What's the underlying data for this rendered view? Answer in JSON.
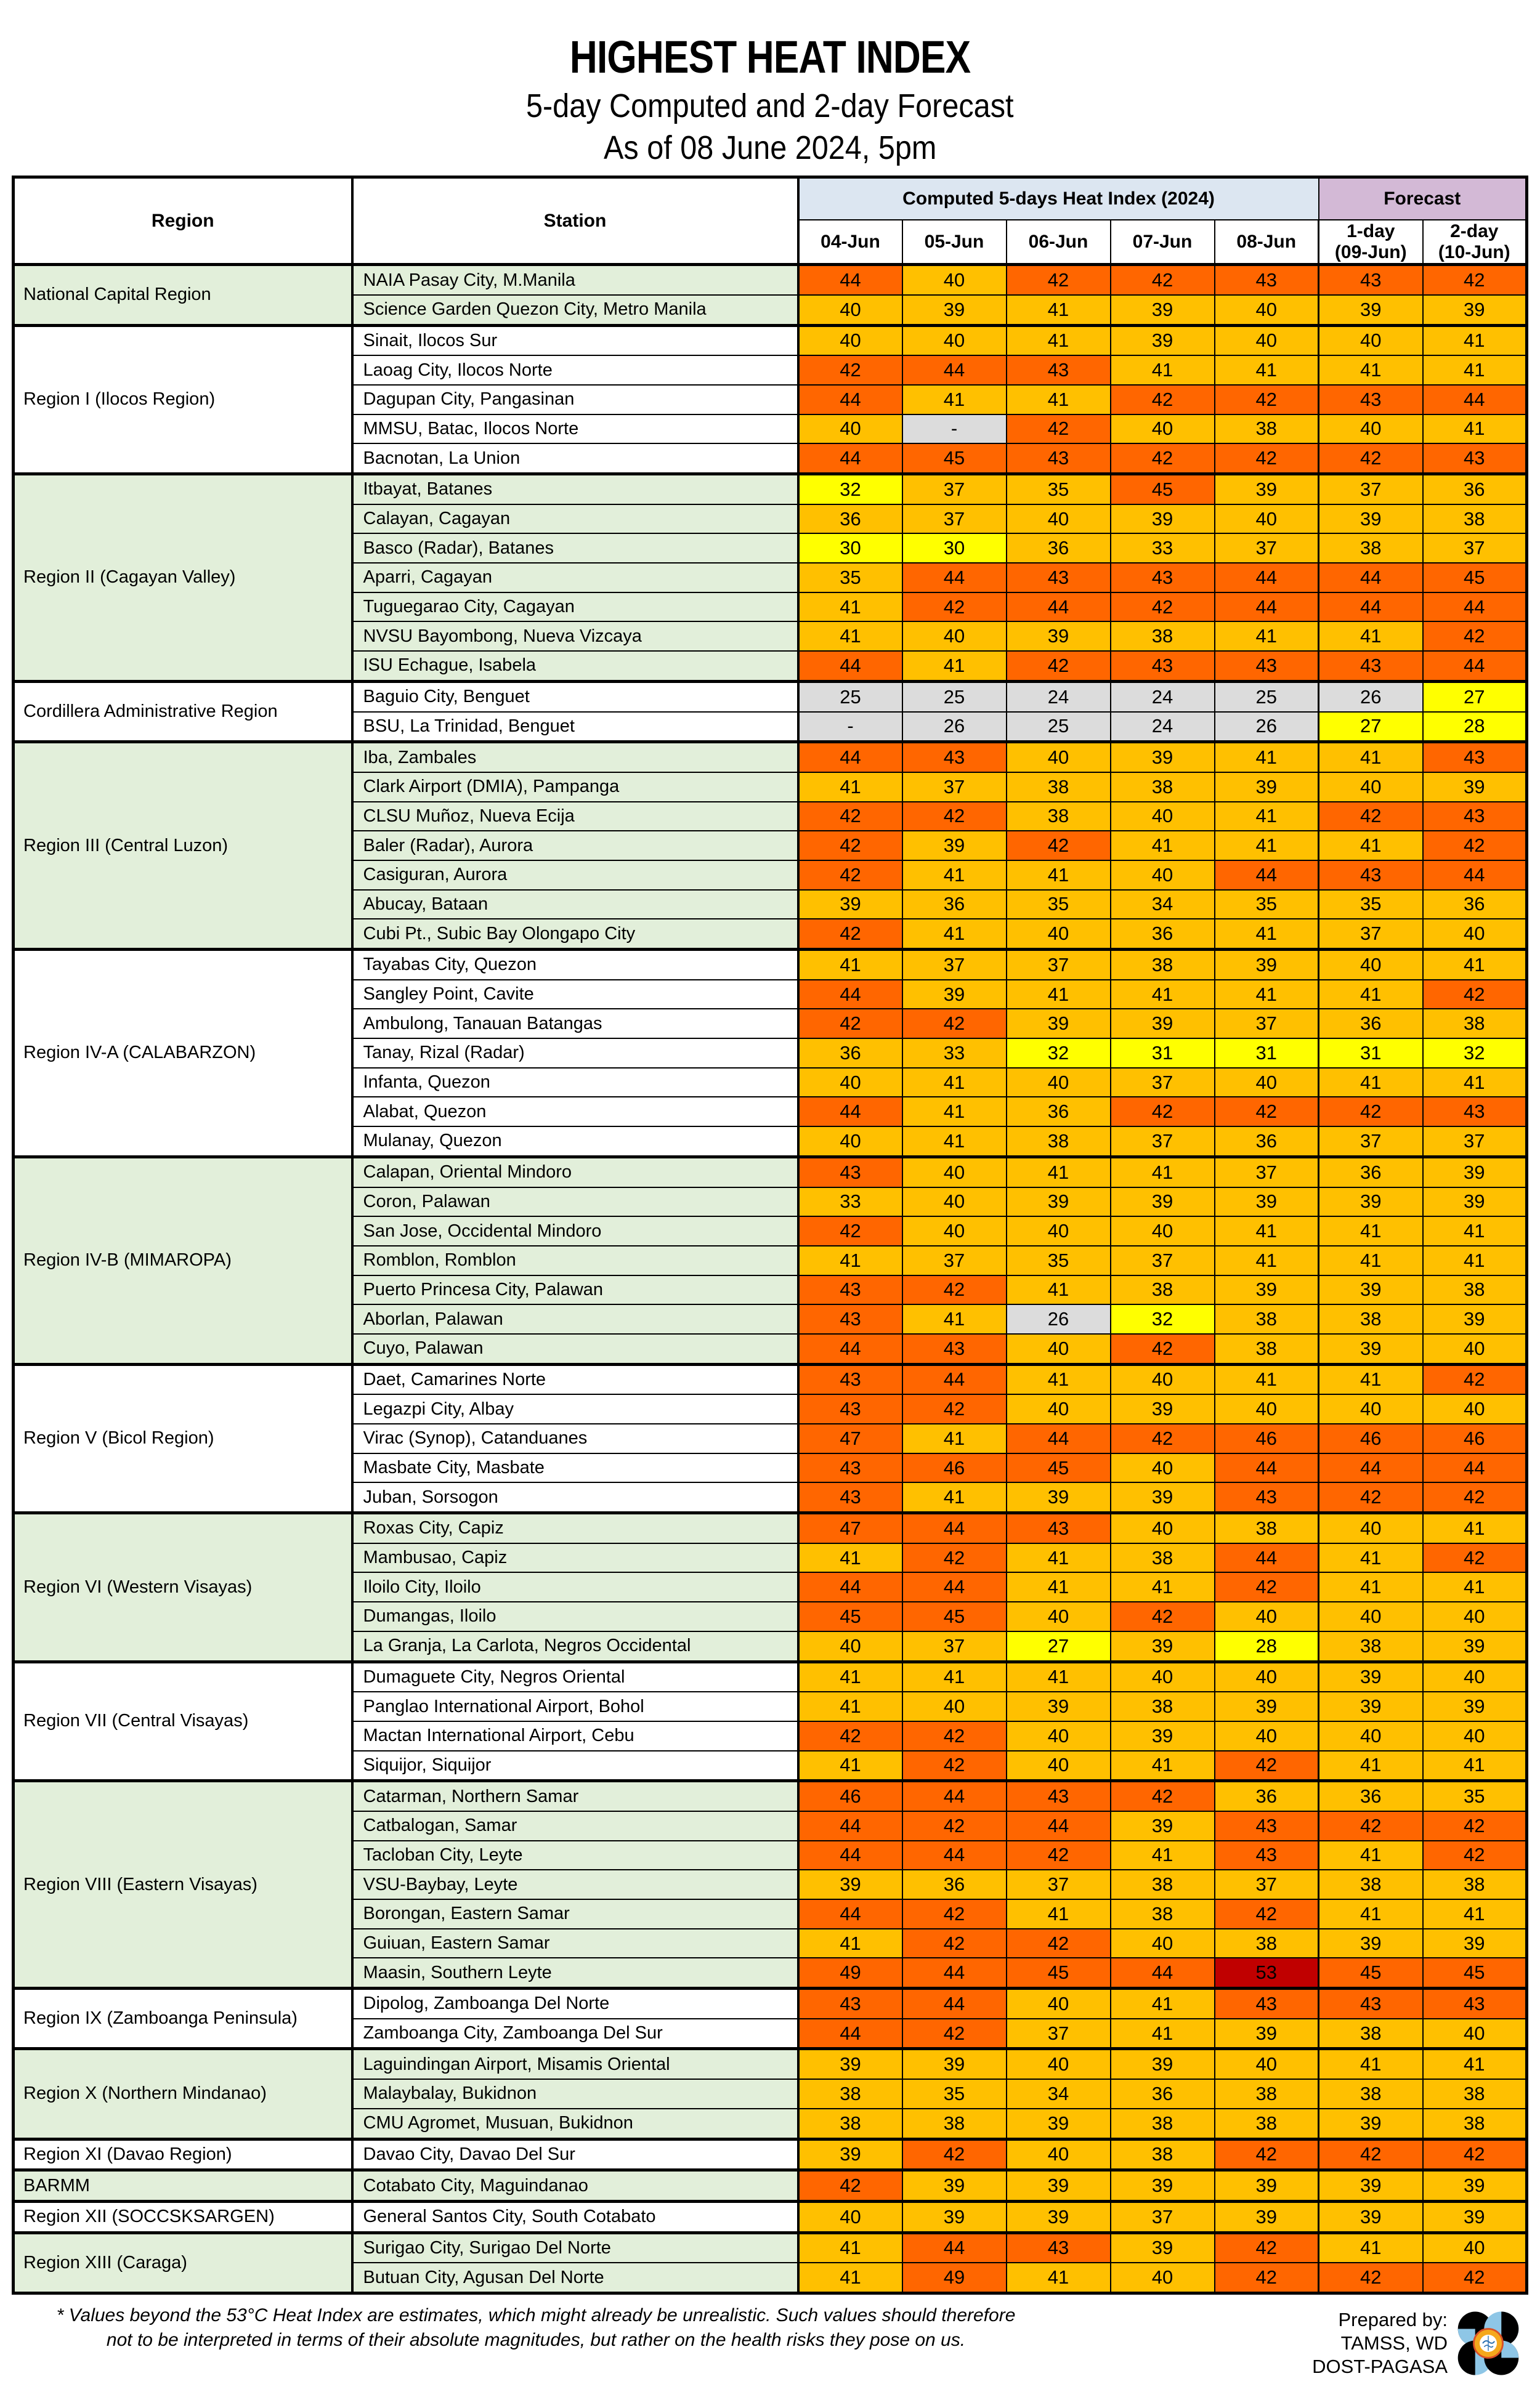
{
  "header": {
    "title": "HIGHEST HEAT INDEX",
    "subtitle": "5-day Computed and 2-day Forecast",
    "as_of": "As of 08 June 2024, 5pm"
  },
  "table": {
    "region_label": "Region",
    "station_label": "Station",
    "computed_label": "Computed 5-days Heat Index (2024)",
    "forecast_label": "Forecast",
    "dates": [
      "04-Jun",
      "05-Jun",
      "06-Jun",
      "07-Jun",
      "08-Jun"
    ],
    "forecast_days": [
      {
        "top": "1-day",
        "bottom": "(09-Jun)"
      },
      {
        "top": "2-day",
        "bottom": "(10-Jun)"
      }
    ],
    "regions": [
      {
        "name": "National Capital Region",
        "shaded": true,
        "stations": [
          {
            "name": "NAIA Pasay City, M.Manila",
            "values": [
              44,
              40,
              42,
              42,
              43,
              43,
              42
            ]
          },
          {
            "name": "Science Garden Quezon City, Metro Manila",
            "values": [
              40,
              39,
              41,
              39,
              40,
              39,
              39
            ]
          }
        ]
      },
      {
        "name": "Region I (Ilocos Region)",
        "shaded": false,
        "stations": [
          {
            "name": "Sinait, Ilocos Sur",
            "values": [
              40,
              40,
              41,
              39,
              40,
              40,
              41
            ]
          },
          {
            "name": "Laoag City, Ilocos Norte",
            "values": [
              42,
              44,
              43,
              41,
              41,
              41,
              41
            ]
          },
          {
            "name": "Dagupan City, Pangasinan",
            "values": [
              44,
              41,
              41,
              42,
              42,
              43,
              44
            ]
          },
          {
            "name": "MMSU, Batac, Ilocos Norte",
            "values": [
              40,
              "-",
              42,
              40,
              38,
              40,
              41
            ]
          },
          {
            "name": "Bacnotan, La Union",
            "values": [
              44,
              45,
              43,
              42,
              42,
              42,
              43
            ]
          }
        ]
      },
      {
        "name": "Region II (Cagayan Valley)",
        "shaded": true,
        "stations": [
          {
            "name": "Itbayat, Batanes",
            "values": [
              32,
              37,
              35,
              45,
              39,
              37,
              36
            ]
          },
          {
            "name": "Calayan, Cagayan",
            "values": [
              36,
              37,
              40,
              39,
              40,
              39,
              38
            ]
          },
          {
            "name": "Basco (Radar), Batanes",
            "values": [
              30,
              30,
              36,
              33,
              37,
              38,
              37
            ]
          },
          {
            "name": "Aparri, Cagayan",
            "values": [
              35,
              44,
              43,
              43,
              44,
              44,
              45
            ]
          },
          {
            "name": "Tuguegarao City, Cagayan",
            "values": [
              41,
              42,
              44,
              42,
              44,
              44,
              44
            ]
          },
          {
            "name": "NVSU Bayombong, Nueva Vizcaya",
            "values": [
              41,
              40,
              39,
              38,
              41,
              41,
              42
            ]
          },
          {
            "name": "ISU Echague, Isabela",
            "values": [
              44,
              41,
              42,
              43,
              43,
              43,
              44
            ]
          }
        ]
      },
      {
        "name": "Cordillera Administrative Region",
        "shaded": false,
        "stations": [
          {
            "name": "Baguio City, Benguet",
            "values": [
              25,
              25,
              24,
              24,
              25,
              26,
              27
            ]
          },
          {
            "name": "BSU, La Trinidad, Benguet",
            "values": [
              "-",
              26,
              25,
              24,
              26,
              27,
              28
            ]
          }
        ]
      },
      {
        "name": "Region III (Central Luzon)",
        "shaded": true,
        "stations": [
          {
            "name": "Iba, Zambales",
            "values": [
              44,
              43,
              40,
              39,
              41,
              41,
              43
            ]
          },
          {
            "name": "Clark Airport (DMIA), Pampanga",
            "values": [
              41,
              37,
              38,
              38,
              39,
              40,
              39
            ]
          },
          {
            "name": "CLSU Muñoz, Nueva Ecija",
            "values": [
              42,
              42,
              38,
              40,
              41,
              42,
              43
            ]
          },
          {
            "name": "Baler (Radar), Aurora",
            "values": [
              42,
              39,
              42,
              41,
              41,
              41,
              42
            ]
          },
          {
            "name": "Casiguran, Aurora",
            "values": [
              42,
              41,
              41,
              40,
              44,
              43,
              44
            ]
          },
          {
            "name": "Abucay, Bataan",
            "values": [
              39,
              36,
              35,
              34,
              35,
              35,
              36
            ]
          },
          {
            "name": "Cubi Pt., Subic Bay Olongapo City",
            "values": [
              42,
              41,
              40,
              36,
              41,
              37,
              40
            ]
          }
        ]
      },
      {
        "name": "Region IV-A (CALABARZON)",
        "shaded": false,
        "stations": [
          {
            "name": "Tayabas City, Quezon",
            "values": [
              41,
              37,
              37,
              38,
              39,
              40,
              41
            ]
          },
          {
            "name": "Sangley Point, Cavite",
            "values": [
              44,
              39,
              41,
              41,
              41,
              41,
              42
            ]
          },
          {
            "name": "Ambulong, Tanauan Batangas",
            "values": [
              42,
              42,
              39,
              39,
              37,
              36,
              38
            ]
          },
          {
            "name": "Tanay, Rizal (Radar)",
            "values": [
              36,
              33,
              32,
              31,
              31,
              31,
              32
            ]
          },
          {
            "name": "Infanta, Quezon",
            "values": [
              40,
              41,
              40,
              37,
              40,
              41,
              41
            ]
          },
          {
            "name": "Alabat, Quezon",
            "values": [
              44,
              41,
              36,
              42,
              42,
              42,
              43
            ]
          },
          {
            "name": "Mulanay, Quezon",
            "values": [
              40,
              41,
              38,
              37,
              36,
              37,
              37
            ]
          }
        ]
      },
      {
        "name": "Region IV-B (MIMAROPA)",
        "shaded": true,
        "stations": [
          {
            "name": "Calapan, Oriental Mindoro",
            "values": [
              43,
              40,
              41,
              41,
              37,
              36,
              39
            ]
          },
          {
            "name": "Coron, Palawan",
            "values": [
              33,
              40,
              39,
              39,
              39,
              39,
              39
            ]
          },
          {
            "name": "San Jose, Occidental Mindoro",
            "values": [
              42,
              40,
              40,
              40,
              41,
              41,
              41
            ]
          },
          {
            "name": "Romblon, Romblon",
            "values": [
              41,
              37,
              35,
              37,
              41,
              41,
              41
            ]
          },
          {
            "name": "Puerto Princesa City, Palawan",
            "values": [
              43,
              42,
              41,
              38,
              39,
              39,
              38
            ]
          },
          {
            "name": "Aborlan, Palawan",
            "values": [
              43,
              41,
              26,
              32,
              38,
              38,
              39
            ]
          },
          {
            "name": "Cuyo, Palawan",
            "values": [
              44,
              43,
              40,
              42,
              38,
              39,
              40
            ]
          }
        ]
      },
      {
        "name": "Region V (Bicol Region)",
        "shaded": false,
        "stations": [
          {
            "name": "Daet, Camarines Norte",
            "values": [
              43,
              44,
              41,
              40,
              41,
              41,
              42
            ]
          },
          {
            "name": "Legazpi City, Albay",
            "values": [
              43,
              42,
              40,
              39,
              40,
              40,
              40
            ]
          },
          {
            "name": "Virac (Synop), Catanduanes",
            "values": [
              47,
              41,
              44,
              42,
              46,
              46,
              46
            ]
          },
          {
            "name": "Masbate City, Masbate",
            "values": [
              43,
              46,
              45,
              40,
              44,
              44,
              44
            ]
          },
          {
            "name": "Juban, Sorsogon",
            "values": [
              43,
              41,
              39,
              39,
              43,
              42,
              42
            ]
          }
        ]
      },
      {
        "name": "Region VI (Western Visayas)",
        "shaded": true,
        "stations": [
          {
            "name": "Roxas City, Capiz",
            "values": [
              47,
              44,
              43,
              40,
              38,
              40,
              41
            ]
          },
          {
            "name": "Mambusao, Capiz",
            "values": [
              41,
              42,
              41,
              38,
              44,
              41,
              42
            ]
          },
          {
            "name": "Iloilo City, Iloilo",
            "values": [
              44,
              44,
              41,
              41,
              42,
              41,
              41
            ]
          },
          {
            "name": "Dumangas, Iloilo",
            "values": [
              45,
              45,
              40,
              42,
              40,
              40,
              40
            ]
          },
          {
            "name": "La Granja, La Carlota, Negros Occidental",
            "values": [
              40,
              37,
              27,
              39,
              28,
              38,
              39
            ]
          }
        ]
      },
      {
        "name": "Region VII (Central Visayas)",
        "shaded": false,
        "stations": [
          {
            "name": "Dumaguete City, Negros Oriental",
            "values": [
              41,
              41,
              41,
              40,
              40,
              39,
              40
            ]
          },
          {
            "name": "Panglao International Airport, Bohol",
            "values": [
              41,
              40,
              39,
              38,
              39,
              39,
              39
            ]
          },
          {
            "name": "Mactan International Airport, Cebu",
            "values": [
              42,
              42,
              40,
              39,
              40,
              40,
              40
            ]
          },
          {
            "name": "Siquijor, Siquijor",
            "values": [
              41,
              42,
              40,
              41,
              42,
              41,
              41
            ]
          }
        ]
      },
      {
        "name": "Region VIII (Eastern Visayas)",
        "shaded": true,
        "stations": [
          {
            "name": "Catarman, Northern Samar",
            "values": [
              46,
              44,
              43,
              42,
              36,
              36,
              35
            ]
          },
          {
            "name": "Catbalogan, Samar",
            "values": [
              44,
              42,
              44,
              39,
              43,
              42,
              42
            ]
          },
          {
            "name": "Tacloban City, Leyte",
            "values": [
              44,
              44,
              42,
              41,
              43,
              41,
              42
            ]
          },
          {
            "name": "VSU-Baybay, Leyte",
            "values": [
              39,
              36,
              37,
              38,
              37,
              38,
              38
            ]
          },
          {
            "name": "Borongan, Eastern Samar",
            "values": [
              44,
              42,
              41,
              38,
              42,
              41,
              41
            ]
          },
          {
            "name": "Guiuan, Eastern Samar",
            "values": [
              41,
              42,
              42,
              40,
              38,
              39,
              39
            ]
          },
          {
            "name": "Maasin, Southern Leyte",
            "values": [
              49,
              44,
              45,
              44,
              53,
              45,
              45
            ]
          }
        ]
      },
      {
        "name": "Region IX (Zamboanga Peninsula)",
        "shaded": false,
        "stations": [
          {
            "name": "Dipolog, Zamboanga Del Norte",
            "values": [
              43,
              44,
              40,
              41,
              43,
              43,
              43
            ]
          },
          {
            "name": "Zamboanga City, Zamboanga Del Sur",
            "values": [
              44,
              42,
              37,
              41,
              39,
              38,
              40
            ]
          }
        ]
      },
      {
        "name": "Region X (Northern Mindanao)",
        "shaded": true,
        "stations": [
          {
            "name": "Laguindingan Airport, Misamis Oriental",
            "values": [
              39,
              39,
              40,
              39,
              40,
              41,
              41
            ]
          },
          {
            "name": "Malaybalay, Bukidnon",
            "values": [
              38,
              35,
              34,
              36,
              38,
              38,
              38
            ]
          },
          {
            "name": "CMU Agromet, Musuan, Bukidnon",
            "values": [
              38,
              38,
              39,
              38,
              38,
              39,
              38
            ]
          }
        ]
      },
      {
        "name": "Region XI (Davao Region)",
        "shaded": false,
        "stations": [
          {
            "name": "Davao City, Davao Del Sur",
            "values": [
              39,
              42,
              40,
              38,
              42,
              42,
              42
            ]
          }
        ]
      },
      {
        "name": "BARMM",
        "shaded": true,
        "stations": [
          {
            "name": "Cotabato City, Maguindanao",
            "values": [
              42,
              39,
              39,
              39,
              39,
              39,
              39
            ]
          }
        ]
      },
      {
        "name": "Region XII (SOCCSKSARGEN)",
        "shaded": false,
        "stations": [
          {
            "name": "General Santos City, South Cotabato",
            "values": [
              40,
              39,
              39,
              37,
              39,
              39,
              39
            ]
          }
        ]
      },
      {
        "name": "Region XIII (Caraga)",
        "shaded": true,
        "stations": [
          {
            "name": "Surigao City, Surigao Del Norte",
            "values": [
              41,
              44,
              43,
              39,
              42,
              41,
              40
            ]
          },
          {
            "name": "Butuan City, Agusan Del Norte",
            "values": [
              41,
              49,
              41,
              40,
              42,
              42,
              42
            ]
          }
        ]
      }
    ]
  },
  "colors": {
    "group_shaded": "#e2efda",
    "group_plain": "#ffffff",
    "header_computed": "#dce6f1",
    "header_forecast": "#d3b9d6",
    "no_data": "#dcdcdc",
    "caution_yellow": "#ffff00",
    "extreme_caution_gold": "#ffc000",
    "danger_orange": "#ff6600",
    "extreme_danger_red": "#c00000"
  },
  "footnote": {
    "line1": "* Values beyond the 53°C Heat Index are estimates, which might already be unrealistic. Such values should therefore",
    "line2": "not to be interpreted in terms of their absolute magnitudes, but rather on the health risks they pose on us."
  },
  "prepared_by": {
    "line1": "Prepared by:",
    "line2": "TAMSS, WD",
    "line3": "DOST-PAGASA"
  }
}
